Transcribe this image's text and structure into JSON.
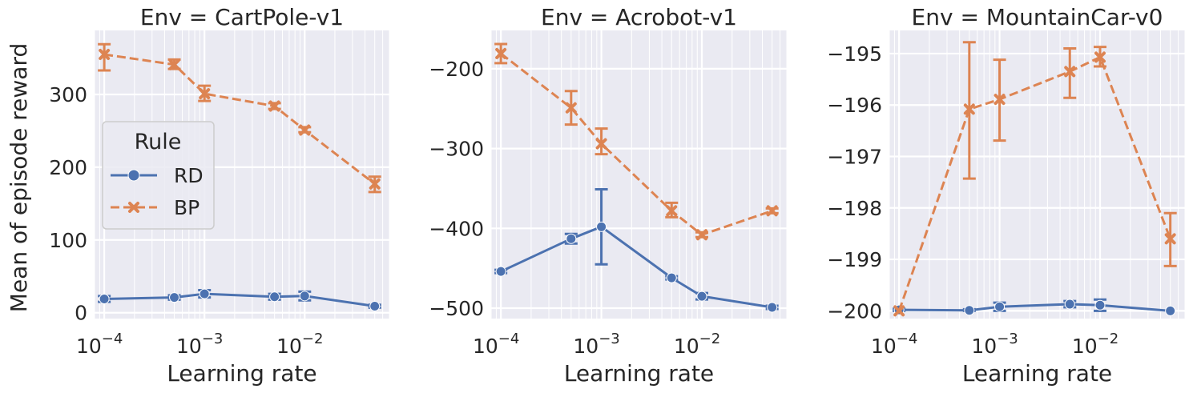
{
  "figure": {
    "ylabel": "Mean of episode reward",
    "legend": {
      "title": "Rule",
      "placement": "center-left of first panel",
      "entries": [
        {
          "label": "RD",
          "series": "RD"
        },
        {
          "label": "BP",
          "series": "BP"
        }
      ]
    }
  },
  "colors": {
    "RD": "#4c72b0",
    "BP": "#dd8452",
    "panel_background": "#eaeaf2",
    "grid": "#ffffff"
  },
  "chart_data": [
    {
      "type": "line",
      "title": "Env = CartPole-v1",
      "xlabel": "Learning rate",
      "ylabel": "Mean of episode reward",
      "x_scale": "log",
      "xlim": [
        8e-05,
        0.07
      ],
      "ylim": [
        -8,
        388
      ],
      "x_ticks": [
        {
          "value": 0.0001,
          "label": "10",
          "exp": "−4"
        },
        {
          "value": 0.001,
          "label": "10",
          "exp": "−3"
        },
        {
          "value": 0.01,
          "label": "10",
          "exp": "−2"
        }
      ],
      "y_ticks": [
        {
          "value": 0,
          "label": "0"
        },
        {
          "value": 100,
          "label": "100"
        },
        {
          "value": 200,
          "label": "200"
        },
        {
          "value": 300,
          "label": "300"
        }
      ],
      "grid": true,
      "series": [
        {
          "name": "RD",
          "marker": "circle",
          "style": "solid",
          "x": [
            0.0001,
            0.0005,
            0.001,
            0.005,
            0.01,
            0.05
          ],
          "y": [
            19,
            21,
            26,
            22,
            23,
            9
          ],
          "err_low": [
            15,
            18,
            21,
            18,
            17,
            7
          ],
          "err_high": [
            23,
            24,
            31,
            26,
            29,
            11
          ]
        },
        {
          "name": "BP",
          "marker": "x",
          "style": "dashed",
          "x": [
            0.0001,
            0.0005,
            0.001,
            0.005,
            0.01,
            0.05
          ],
          "y": [
            355,
            341,
            301,
            284,
            251,
            177
          ],
          "err_low": [
            333,
            335,
            291,
            280,
            248,
            166
          ],
          "err_high": [
            369,
            348,
            312,
            288,
            255,
            187
          ]
        }
      ]
    },
    {
      "type": "line",
      "title": "Env = Acrobot-v1",
      "xlabel": "Learning rate",
      "x_scale": "log",
      "xlim": [
        8e-05,
        0.07
      ],
      "ylim": [
        -513,
        -152
      ],
      "x_ticks": [
        {
          "value": 0.0001,
          "label": "10",
          "exp": "−4"
        },
        {
          "value": 0.001,
          "label": "10",
          "exp": "−3"
        },
        {
          "value": 0.01,
          "label": "10",
          "exp": "−2"
        }
      ],
      "y_ticks": [
        {
          "value": -200,
          "label": "−200"
        },
        {
          "value": -300,
          "label": "−300"
        },
        {
          "value": -400,
          "label": "−400"
        },
        {
          "value": -500,
          "label": "−500"
        }
      ],
      "grid": true,
      "series": [
        {
          "name": "RD",
          "marker": "circle",
          "style": "solid",
          "x": [
            0.0001,
            0.0005,
            0.001,
            0.005,
            0.01,
            0.05
          ],
          "y": [
            -454,
            -413,
            -398,
            -462,
            -485,
            -499
          ],
          "err_low": [
            -456,
            -419,
            -445,
            -464,
            -489,
            -501
          ],
          "err_high": [
            -452,
            -407,
            -351,
            -460,
            -481,
            -497
          ]
        },
        {
          "name": "BP",
          "marker": "x",
          "style": "dashed",
          "x": [
            0.0001,
            0.0005,
            0.001,
            0.005,
            0.01,
            0.05
          ],
          "y": [
            -181,
            -249,
            -294,
            -378,
            -408,
            -378
          ],
          "err_low": [
            -193,
            -270,
            -307,
            -386,
            -411,
            -381
          ],
          "err_high": [
            -169,
            -228,
            -275,
            -368,
            -405,
            -375
          ]
        }
      ]
    },
    {
      "type": "line",
      "title": "Env = MountainCar-v0",
      "xlabel": "Learning rate",
      "x_scale": "log",
      "xlim": [
        8e-05,
        0.07
      ],
      "ylim": [
        -200.15,
        -194.55
      ],
      "x_ticks": [
        {
          "value": 0.0001,
          "label": "10",
          "exp": "−4"
        },
        {
          "value": 0.001,
          "label": "10",
          "exp": "−3"
        },
        {
          "value": 0.01,
          "label": "10",
          "exp": "−2"
        }
      ],
      "y_ticks": [
        {
          "value": -195,
          "label": "−195"
        },
        {
          "value": -196,
          "label": "−196"
        },
        {
          "value": -197,
          "label": "−197"
        },
        {
          "value": -198,
          "label": "−198"
        },
        {
          "value": -199,
          "label": "−199"
        },
        {
          "value": -200,
          "label": "−200"
        }
      ],
      "grid": true,
      "series": [
        {
          "name": "RD",
          "marker": "circle",
          "style": "solid",
          "x": [
            0.0001,
            0.0005,
            0.001,
            0.005,
            0.01,
            0.05
          ],
          "y": [
            -199.98,
            -199.99,
            -199.92,
            -199.87,
            -199.89,
            -200.0
          ],
          "err_low": [
            -200.0,
            -200.0,
            -200.0,
            -199.93,
            -200.0,
            -200.0
          ],
          "err_high": [
            -199.96,
            -199.97,
            -199.84,
            -199.81,
            -199.78,
            -200.0
          ]
        },
        {
          "name": "BP",
          "marker": "x",
          "style": "dashed",
          "x": [
            0.0001,
            0.0005,
            0.001,
            0.005,
            0.01,
            0.05
          ],
          "y": [
            -200.0,
            -196.08,
            -195.89,
            -195.35,
            -195.07,
            -198.6
          ],
          "err_low": [
            -200.0,
            -197.43,
            -196.69,
            -195.86,
            -195.25,
            -199.13
          ],
          "err_high": [
            -200.0,
            -194.78,
            -195.12,
            -194.9,
            -194.87,
            -198.1
          ]
        }
      ]
    }
  ]
}
